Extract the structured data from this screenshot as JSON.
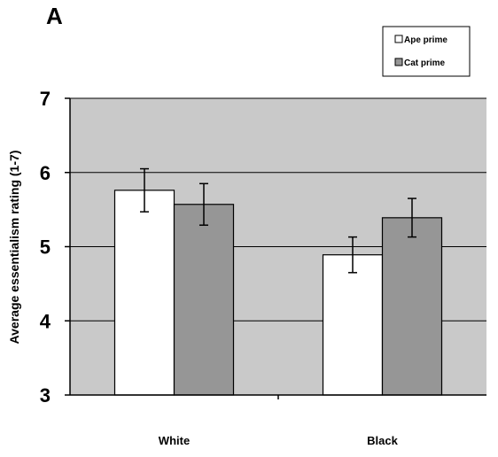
{
  "panel_label": "A",
  "chart_data": {
    "type": "bar",
    "categories": [
      "White",
      "Black"
    ],
    "series": [
      {
        "name": "Ape prime",
        "values": [
          5.76,
          4.89
        ],
        "error": [
          0.29,
          0.24
        ],
        "color": "#ffffff"
      },
      {
        "name": "Cat prime",
        "values": [
          5.57,
          5.39
        ],
        "error": [
          0.28,
          0.26
        ],
        "color": "#969696"
      }
    ],
    "xlabel": "",
    "ylabel": "Average essentialism rating (1-7)",
    "ylim": [
      3,
      7
    ],
    "yticks": [
      3,
      4,
      5,
      6,
      7
    ],
    "grid": true,
    "legend_position": "top-right",
    "plot_background": "#c9c9c9",
    "error_bars": true
  }
}
